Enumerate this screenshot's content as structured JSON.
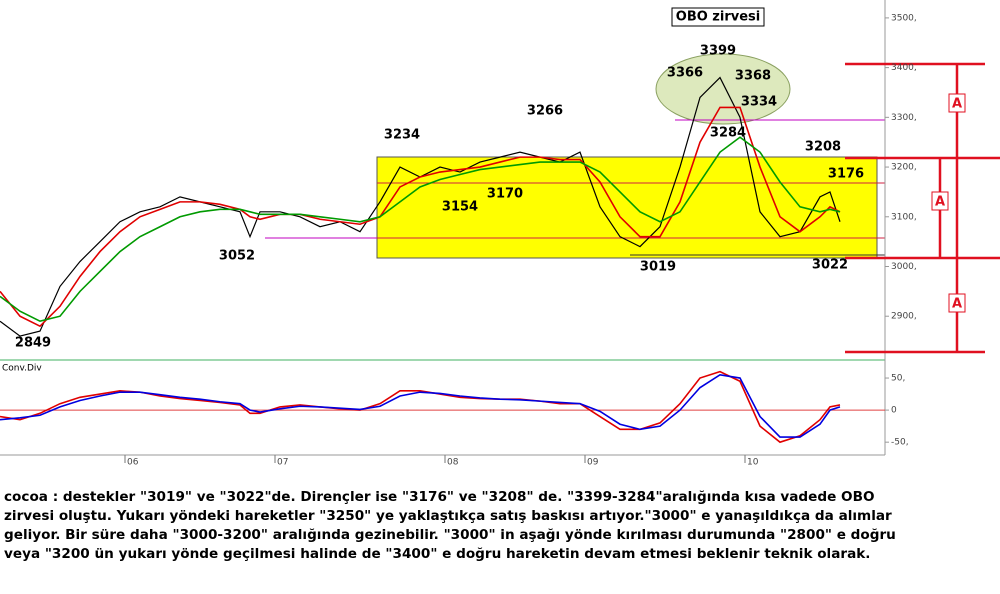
{
  "chart_data": [
    {
      "type": "line",
      "x": [
        0,
        4,
        8,
        12,
        16,
        20,
        24,
        28,
        32,
        36,
        40,
        44,
        48,
        50,
        52,
        56,
        60,
        64,
        68,
        72,
        76,
        80,
        84,
        88,
        92,
        96,
        100,
        104,
        108,
        112,
        116,
        120,
        124,
        128,
        132,
        136,
        140,
        144,
        148,
        152,
        156,
        160,
        164,
        166,
        168
      ],
      "xlim": [
        0,
        177
      ],
      "series": [
        {
          "color": "#000000",
          "values": [
            2890,
            2860,
            2870,
            2960,
            3010,
            3050,
            3090,
            3110,
            3120,
            3140,
            3130,
            3120,
            3110,
            3060,
            3110,
            3110,
            3100,
            3080,
            3090,
            3070,
            3130,
            3200,
            3180,
            3200,
            3190,
            3210,
            3220,
            3230,
            3220,
            3210,
            3230,
            3120,
            3060,
            3040,
            3080,
            3200,
            3340,
            3380,
            3300,
            3110,
            3060,
            3070,
            3140,
            3150,
            3090
          ]
        },
        {
          "color": "#e00000",
          "values": [
            2950,
            2900,
            2880,
            2920,
            2980,
            3030,
            3070,
            3100,
            3115,
            3130,
            3130,
            3125,
            3115,
            3100,
            3095,
            3105,
            3105,
            3095,
            3090,
            3085,
            3100,
            3160,
            3180,
            3190,
            3195,
            3200,
            3210,
            3220,
            3220,
            3215,
            3215,
            3170,
            3100,
            3060,
            3060,
            3130,
            3250,
            3320,
            3320,
            3200,
            3100,
            3070,
            3100,
            3120,
            3110
          ]
        },
        {
          "color": "#009a00",
          "values": [
            2940,
            2910,
            2890,
            2900,
            2950,
            2990,
            3030,
            3060,
            3080,
            3100,
            3110,
            3115,
            3115,
            3110,
            3105,
            3105,
            3105,
            3100,
            3095,
            3090,
            3100,
            3130,
            3160,
            3175,
            3185,
            3195,
            3200,
            3205,
            3210,
            3210,
            3210,
            3190,
            3150,
            3110,
            3090,
            3110,
            3170,
            3230,
            3260,
            3230,
            3170,
            3120,
            3110,
            3115,
            3110
          ]
        }
      ],
      "ylim": [
        2822,
        3536
      ],
      "yticks": [
        {
          "value": 2900,
          "label": "2900,"
        },
        {
          "value": 3000,
          "label": "3000,"
        },
        {
          "value": 3100,
          "label": "3100,"
        },
        {
          "value": 3200,
          "label": "3200,"
        },
        {
          "value": 3300,
          "label": "3300,"
        },
        {
          "value": 3400,
          "label": "3400,"
        },
        {
          "value": 3500,
          "label": "3500,"
        }
      ],
      "grid": false,
      "title": "OBO zirvesi",
      "annotations": [
        "3234",
        "3266",
        "3399",
        "3366",
        "3368",
        "3334",
        "3284",
        "3208",
        "3176",
        "3170",
        "3154",
        "3052",
        "3019",
        "3022",
        "2849"
      ],
      "range_labels": [
        "A",
        "A",
        "A"
      ]
    },
    {
      "type": "line",
      "title": "Conv.Div",
      "x": [
        0,
        4,
        8,
        12,
        16,
        20,
        24,
        28,
        32,
        36,
        40,
        44,
        48,
        50,
        52,
        56,
        60,
        64,
        68,
        72,
        76,
        80,
        84,
        88,
        92,
        96,
        100,
        104,
        108,
        112,
        116,
        120,
        124,
        128,
        132,
        136,
        140,
        144,
        148,
        152,
        156,
        160,
        164,
        166,
        168
      ],
      "xlim": [
        0,
        177
      ],
      "xticks": [
        {
          "value": 25,
          "label": "06"
        },
        {
          "value": 55,
          "label": "07"
        },
        {
          "value": 89,
          "label": "08"
        },
        {
          "value": 117,
          "label": "09"
        },
        {
          "value": 149,
          "label": "10"
        }
      ],
      "series": [
        {
          "color": "#e00000",
          "values": [
            -10,
            -15,
            -5,
            10,
            20,
            25,
            30,
            28,
            22,
            18,
            15,
            12,
            8,
            -5,
            -5,
            5,
            8,
            5,
            2,
            0,
            10,
            30,
            30,
            25,
            20,
            18,
            17,
            17,
            14,
            10,
            10,
            -10,
            -30,
            -30,
            -20,
            10,
            50,
            60,
            45,
            -25,
            -50,
            -40,
            -15,
            5,
            8
          ]
        },
        {
          "color": "#0000e0",
          "values": [
            -15,
            -12,
            -8,
            5,
            15,
            22,
            28,
            28,
            24,
            20,
            17,
            13,
            10,
            0,
            -3,
            2,
            6,
            5,
            3,
            1,
            6,
            22,
            28,
            26,
            22,
            19,
            17,
            16,
            14,
            12,
            10,
            -2,
            -22,
            -30,
            -25,
            0,
            35,
            55,
            50,
            -10,
            -42,
            -42,
            -22,
            0,
            5
          ]
        }
      ],
      "ylim": [
        -70,
        75
      ],
      "yticks": [
        {
          "value": -50,
          "label": "-50,"
        },
        0,
        {
          "value": 50,
          "label": "50,"
        }
      ],
      "grid": false
    }
  ],
  "caption": [
    "cocoa : destekler \"3019\" ve \"3022\"de. Dirençler ise \"3176\" ve \"3208\" de. \"3399-3284\"aralığında kısa vadede OBO",
    "zirvesi oluştu. Yukarı yöndeki hareketler \"3250\" ye yaklaştıkça satış baskısı artıyor.\"3000\" e yanaşıldıkça da alımlar",
    "geliyor. Bir süre daha \"3000-3200\" aralığında gezinebilir. \"3000\" in aşağı yönde kırılması durumunda \"2800\" e doğru",
    "veya \"3200 ün yukarı yönde geçilmesi halinde de \"3400\" e doğru hareketin devam etmesi beklenir teknik olarak."
  ]
}
